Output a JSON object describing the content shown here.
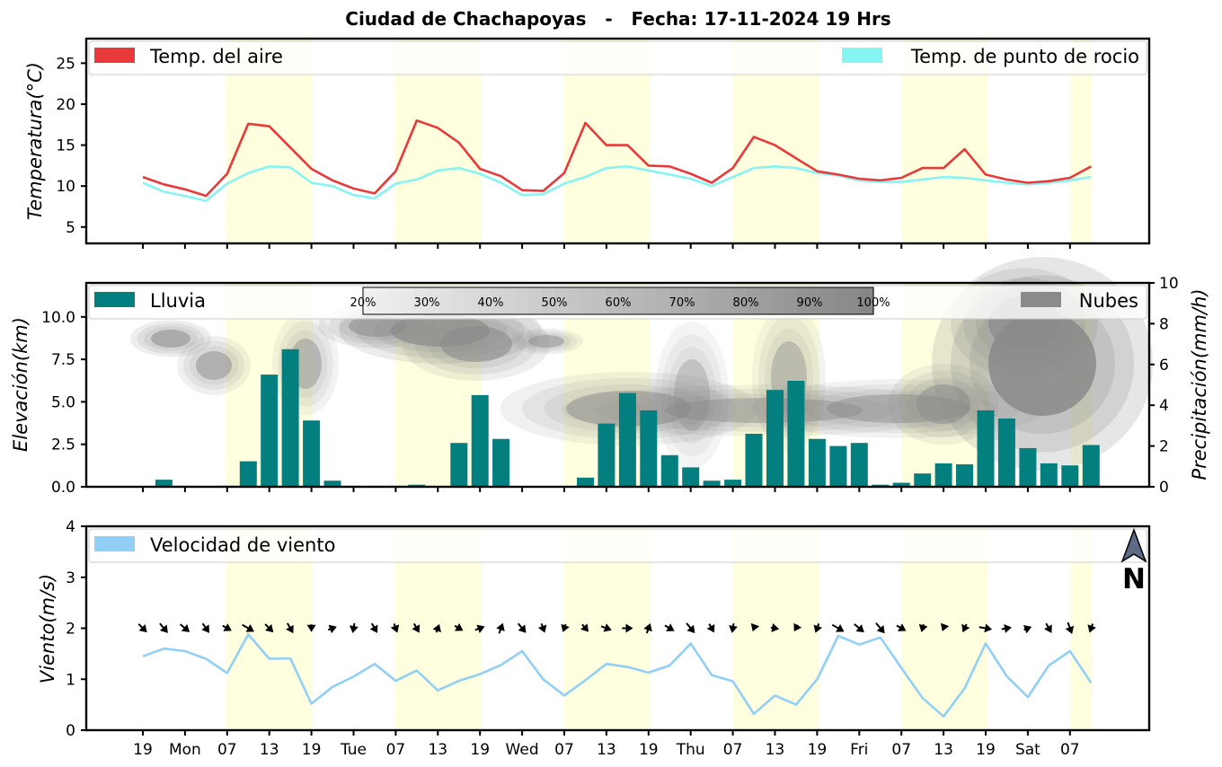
{
  "title": "Ciudad de Chachapoyas   -   Fecha: 17-11-2024 19 Hrs",
  "x_tick_labels": [
    "19",
    "Mon",
    "07",
    "13",
    "19",
    "Tue",
    "07",
    "13",
    "19",
    "Wed",
    "07",
    "13",
    "19",
    "Thu",
    "07",
    "13",
    "19",
    "Fri",
    "07",
    "13",
    "19",
    "Sat",
    "07"
  ],
  "colors": {
    "temp_air": "#e83a3a",
    "temp_dew": "#86f5f2",
    "rain": "#047f80",
    "clouds": "#8a8a8a",
    "wind": "#90d0f7",
    "daylight": "#ffffe0"
  },
  "compass": {
    "label": "N",
    "icon": "north-arrow-icon"
  },
  "chart_data": [
    {
      "type": "line",
      "ylabel": "Temperatura(°C)",
      "ylim": [
        3,
        28
      ],
      "y_ticks": [
        5,
        10,
        15,
        20,
        25
      ],
      "grid": false,
      "legend_placement": "top",
      "series": [
        {
          "name": "Temp. del aire",
          "values": [
            11.1,
            10.2,
            9.6,
            8.8,
            11.5,
            17.6,
            17.3,
            14.7,
            12.1,
            10.7,
            9.7,
            9.1,
            11.8,
            18.0,
            17.1,
            15.3,
            12.1,
            11.2,
            9.5,
            9.4,
            11.6,
            17.7,
            15.0,
            15.0,
            12.5,
            12.4,
            11.5,
            10.4,
            12.2,
            16.0,
            15.0,
            13.4,
            11.8,
            11.4,
            10.9,
            10.7,
            11.0,
            12.2,
            12.2,
            14.5,
            11.4,
            10.8,
            10.4,
            10.6,
            11.0,
            12.4
          ]
        },
        {
          "name": "Temp. de punto de rocio",
          "values": [
            10.4,
            9.3,
            8.8,
            8.2,
            10.3,
            11.6,
            12.4,
            12.3,
            10.4,
            10.0,
            8.9,
            8.5,
            10.3,
            10.8,
            11.9,
            12.2,
            11.5,
            10.4,
            8.9,
            9.0,
            10.3,
            11.1,
            12.2,
            12.4,
            11.9,
            11.4,
            10.9,
            10.0,
            11.1,
            12.2,
            12.4,
            12.2,
            11.6,
            11.3,
            10.7,
            10.5,
            10.5,
            10.8,
            11.1,
            11.0,
            10.7,
            10.4,
            10.2,
            10.4,
            10.7,
            11.1
          ]
        }
      ]
    },
    {
      "type": "bar",
      "ylabel": "Elevación(km)",
      "ylabel_right": "Precipitación(mm/h)",
      "ylim": [
        0,
        12
      ],
      "y_ticks": [
        "0.0",
        "2.5",
        "5.0",
        "7.5",
        "10.0"
      ],
      "ylim_right": [
        0,
        10
      ],
      "y_ticks_right": [
        "0",
        "2",
        "4",
        "6",
        "8",
        "10"
      ],
      "legend_placement": "top",
      "series": [
        {
          "name": "Lluvia",
          "axis": "right",
          "values": [
            0.0,
            0.35,
            0.05,
            0.03,
            0.05,
            1.25,
            5.5,
            6.75,
            3.25,
            0.3,
            0.05,
            0.05,
            0.05,
            0.1,
            0.02,
            2.15,
            4.5,
            2.35,
            0.02,
            0.02,
            0.02,
            0.45,
            3.1,
            4.6,
            3.75,
            1.55,
            0.95,
            0.3,
            0.35,
            2.6,
            4.75,
            5.2,
            2.35,
            2.0,
            2.15,
            0.1,
            0.2,
            0.65,
            1.15,
            1.1,
            3.75,
            3.35,
            1.9,
            1.15,
            1.05,
            2.05
          ]
        }
      ],
      "clouds_legend": "Nubes",
      "cloud_cover_colorbar": [
        "20%",
        "30%",
        "40%",
        "50%",
        "60%",
        "70%",
        "80%",
        "90%",
        "100%"
      ]
    },
    {
      "type": "line",
      "ylabel": "Viento(m/s)",
      "ylim": [
        0,
        4
      ],
      "y_ticks": [
        "0",
        "1",
        "2",
        "3",
        "4"
      ],
      "legend_placement": "top",
      "series": [
        {
          "name": "Velocidad de viento",
          "values": [
            1.45,
            1.6,
            1.55,
            1.4,
            1.12,
            1.88,
            1.4,
            1.41,
            0.52,
            0.85,
            1.05,
            1.3,
            0.97,
            1.17,
            0.78,
            0.97,
            1.1,
            1.28,
            1.55,
            1.0,
            0.68,
            0.98,
            1.3,
            1.24,
            1.13,
            1.27,
            1.7,
            1.08,
            0.96,
            0.32,
            0.68,
            0.5,
            1.0,
            1.85,
            1.68,
            1.82,
            1.22,
            0.63,
            0.27,
            0.82,
            1.7,
            1.06,
            0.65,
            1.27,
            1.55,
            0.93
          ]
        }
      ],
      "wind_direction_deg": [
        315,
        320,
        310,
        325,
        300,
        300,
        315,
        330,
        0,
        250,
        10,
        330,
        340,
        330,
        200,
        300,
        250,
        200,
        320,
        340,
        20,
        320,
        290,
        270,
        200,
        300,
        320,
        330,
        10,
        20,
        280,
        30,
        20,
        300,
        310,
        320,
        300,
        15,
        20,
        25,
        280,
        260,
        250,
        330,
        340,
        20
      ]
    }
  ]
}
